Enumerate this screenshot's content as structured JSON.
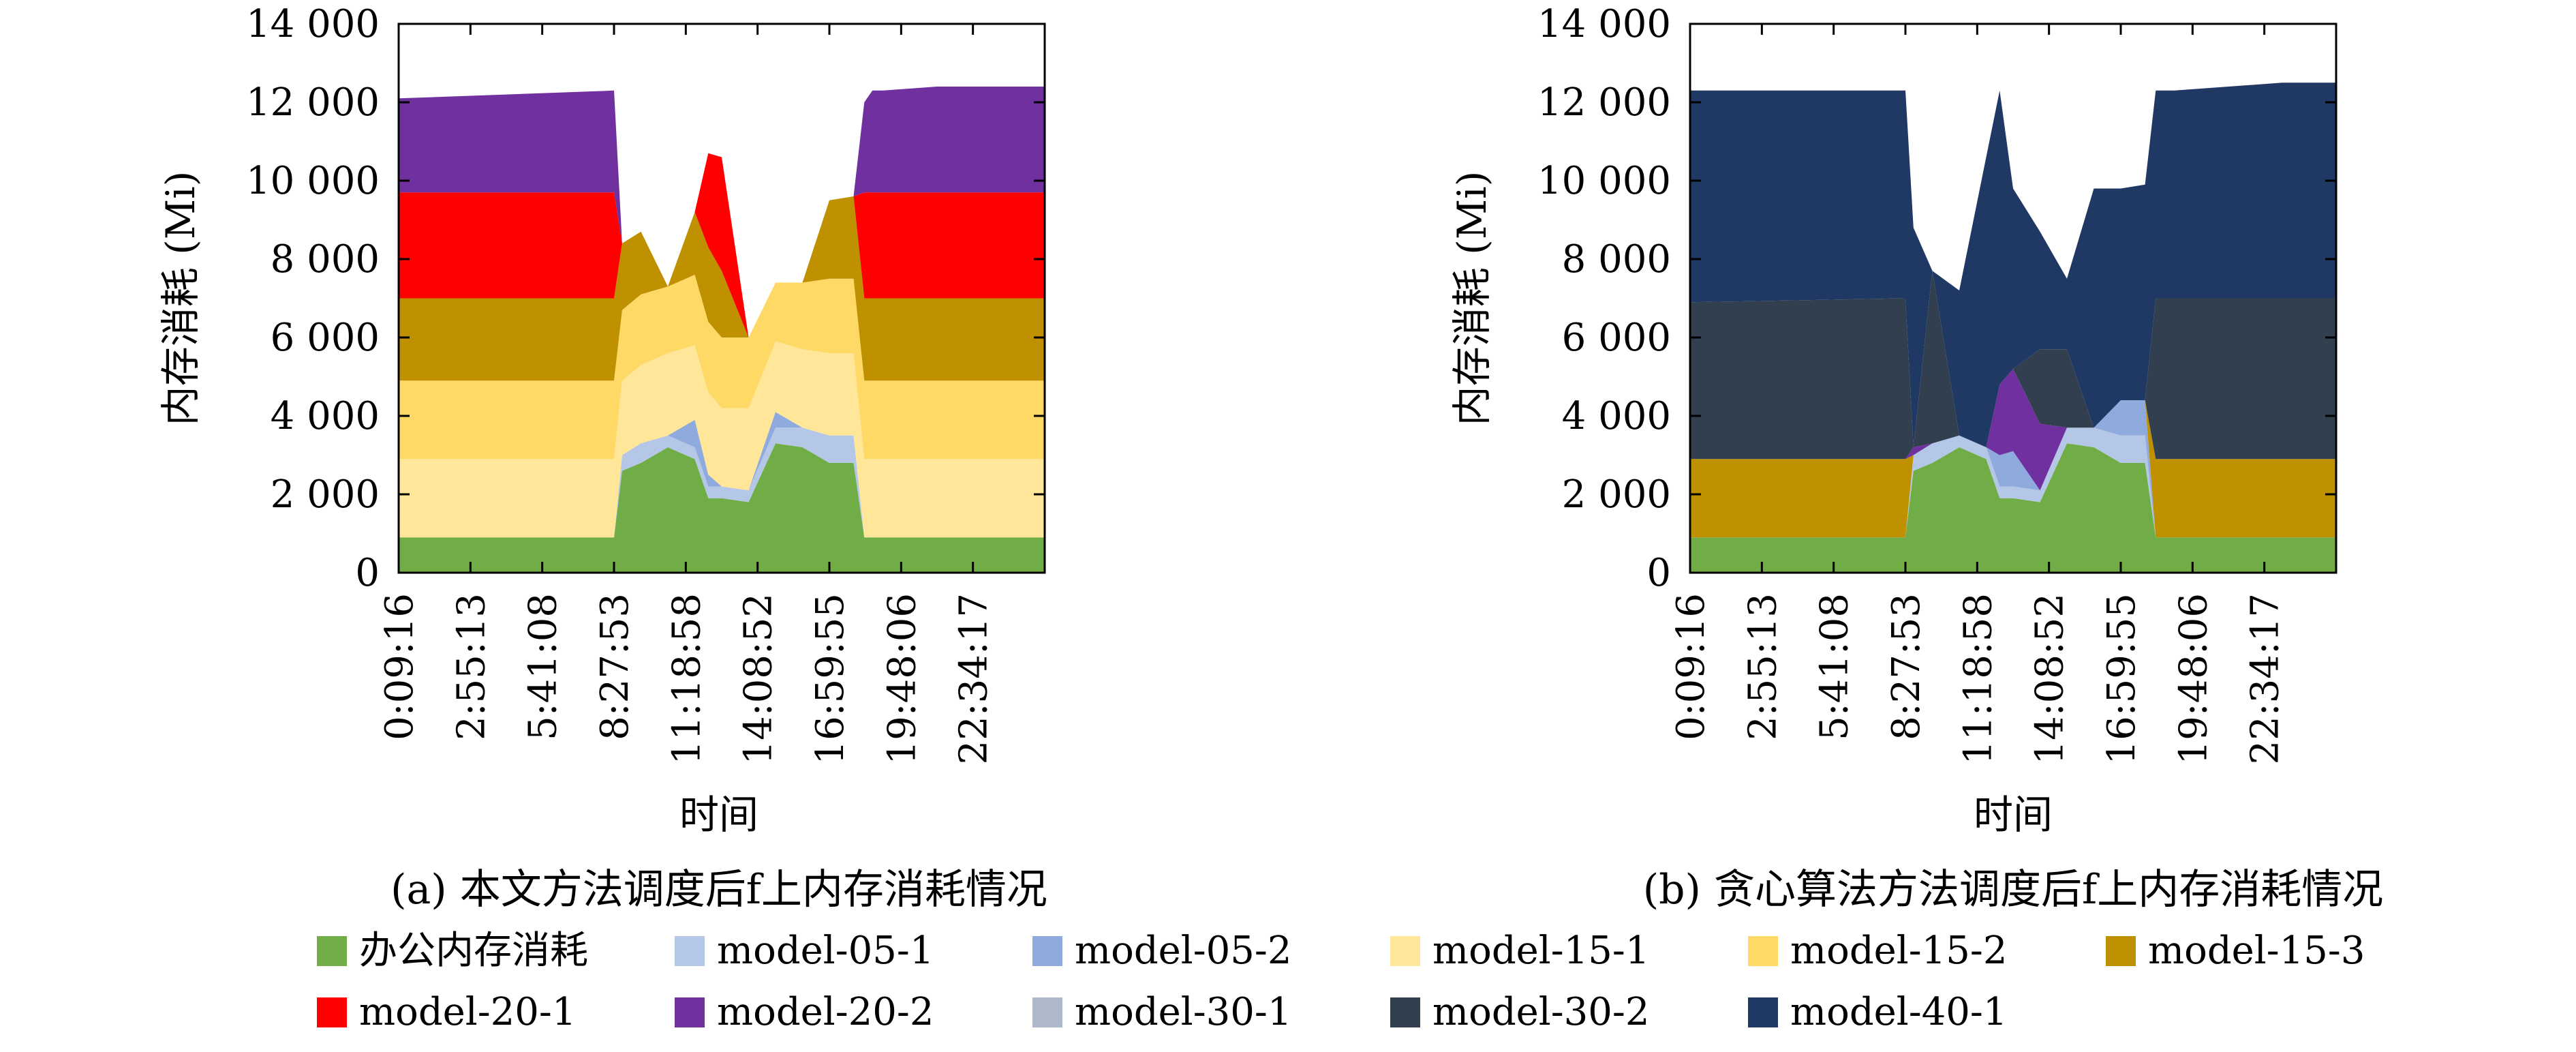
{
  "colors": {
    "office": "#70ad47",
    "model-05-1": "#b4c7e7",
    "model-05-2": "#8faadc",
    "model-15-1": "#ffe699",
    "model-15-2": "#ffd966",
    "model-15-3": "#bf9000",
    "model-20-1": "#ff0000",
    "model-20-2": "#7030a0",
    "model-30-1": "#adb9ca",
    "model-30-2": "#323f4f",
    "model-40-1": "#1f3864"
  },
  "legend": [
    {
      "key": "office",
      "label": "办公内存消耗"
    },
    {
      "key": "model-05-1",
      "label": "model-05-1"
    },
    {
      "key": "model-05-2",
      "label": "model-05-2"
    },
    {
      "key": "model-15-1",
      "label": "model-15-1"
    },
    {
      "key": "model-15-2",
      "label": "model-15-2"
    },
    {
      "key": "model-15-3",
      "label": "model-15-3"
    },
    {
      "key": "model-20-1",
      "label": "model-20-1"
    },
    {
      "key": "model-20-2",
      "label": "model-20-2"
    },
    {
      "key": "model-30-1",
      "label": "model-30-1"
    },
    {
      "key": "model-30-2",
      "label": "model-30-2"
    },
    {
      "key": "model-40-1",
      "label": "model-40-1"
    }
  ],
  "chart_data": [
    {
      "type": "area",
      "stacked": true,
      "caption": "(a) 本文方法调度后f上内存消耗情况",
      "xlabel": "时间",
      "ylabel": "内存消耗 (Mi)",
      "xlim": [
        0,
        24
      ],
      "ylim": [
        0,
        14000
      ],
      "yticks": [
        0,
        2000,
        4000,
        6000,
        8000,
        10000,
        12000,
        14000
      ],
      "ytick_labels": [
        "0",
        "2 000",
        "4 000",
        "6 000",
        "8 000",
        "10 000",
        "12 000",
        "14 000"
      ],
      "xtick_labels": [
        "0:09:16",
        "2:55:13",
        "5:41:08",
        "8:27:53",
        "11:18:58",
        "14:08:52",
        "16:59:55",
        "19:48:06",
        "22:34:17"
      ],
      "x": [
        0,
        8,
        8.3,
        9,
        10,
        11,
        11.5,
        12,
        13,
        14,
        15,
        16,
        16.9,
        17.3,
        17.6,
        18,
        20,
        22,
        24
      ],
      "series": [
        {
          "key": "office",
          "values": [
            900,
            900,
            2600,
            2800,
            3200,
            2900,
            1900,
            1900,
            1800,
            3300,
            3200,
            2800,
            2800,
            900,
            900,
            900,
            900,
            900,
            900
          ]
        },
        {
          "key": "model-05-1",
          "values": [
            0,
            0,
            400,
            500,
            300,
            300,
            300,
            300,
            300,
            400,
            500,
            700,
            700,
            0,
            0,
            0,
            0,
            0,
            0
          ]
        },
        {
          "key": "model-05-2",
          "values": [
            0,
            0,
            0,
            0,
            0,
            700,
            300,
            0,
            0,
            400,
            0,
            0,
            0,
            0,
            0,
            0,
            0,
            0,
            0
          ]
        },
        {
          "key": "model-15-1",
          "values": [
            2000,
            2000,
            1900,
            2000,
            2100,
            1900,
            2100,
            2000,
            2100,
            1800,
            2000,
            2100,
            2100,
            2000,
            2000,
            2000,
            2000,
            2000,
            2000
          ]
        },
        {
          "key": "model-15-2",
          "values": [
            2000,
            2000,
            1800,
            1800,
            1700,
            1800,
            1800,
            1800,
            1800,
            1500,
            1700,
            1900,
            1900,
            2000,
            2000,
            2000,
            2000,
            2000,
            2000
          ]
        },
        {
          "key": "model-15-3",
          "values": [
            2100,
            2100,
            1700,
            1600,
            0,
            1600,
            1900,
            1700,
            0,
            0,
            0,
            2000,
            2100,
            2100,
            2100,
            2100,
            2100,
            2100,
            2100
          ]
        },
        {
          "key": "model-20-1",
          "values": [
            2700,
            2700,
            0,
            0,
            0,
            0,
            2400,
            2900,
            0,
            0,
            0,
            0,
            0,
            2700,
            2700,
            2700,
            2700,
            2700,
            2700
          ]
        },
        {
          "key": "model-20-2",
          "values": [
            2400,
            2600,
            0,
            0,
            0,
            0,
            0,
            0,
            0,
            0,
            0,
            0,
            0,
            2300,
            2600,
            2600,
            2700,
            2700,
            2700
          ]
        }
      ]
    },
    {
      "type": "area",
      "stacked": true,
      "caption": "(b) 贪心算法方法调度后f上内存消耗情况",
      "xlabel": "时间",
      "ylabel": "内存消耗 (Mi)",
      "xlim": [
        0,
        24
      ],
      "ylim": [
        0,
        14000
      ],
      "yticks": [
        0,
        2000,
        4000,
        6000,
        8000,
        10000,
        12000,
        14000
      ],
      "ytick_labels": [
        "0",
        "2 000",
        "4 000",
        "6 000",
        "8 000",
        "10 000",
        "12 000",
        "14 000"
      ],
      "xtick_labels": [
        "0:09:16",
        "2:55:13",
        "5:41:08",
        "8:27:53",
        "11:18:58",
        "14:08:52",
        "16:59:55",
        "19:48:06",
        "22:34:17"
      ],
      "x": [
        0,
        8,
        8.3,
        9,
        10,
        11,
        11.5,
        12,
        13,
        14,
        15,
        16,
        16.9,
        17.3,
        17.6,
        18,
        20,
        22,
        24
      ],
      "series": [
        {
          "key": "office",
          "values": [
            900,
            900,
            2600,
            2800,
            3200,
            2900,
            1900,
            1900,
            1800,
            3300,
            3200,
            2800,
            2800,
            900,
            900,
            900,
            900,
            900,
            900
          ]
        },
        {
          "key": "model-05-1",
          "values": [
            0,
            0,
            400,
            500,
            300,
            300,
            300,
            300,
            300,
            400,
            500,
            700,
            700,
            0,
            0,
            0,
            0,
            0,
            0
          ]
        },
        {
          "key": "model-05-2",
          "values": [
            0,
            0,
            0,
            0,
            0,
            0,
            800,
            900,
            0,
            0,
            0,
            900,
            900,
            0,
            0,
            0,
            0,
            0,
            0
          ]
        },
        {
          "key": "model-15-3",
          "values": [
            2000,
            2000,
            0,
            0,
            0,
            0,
            0,
            0,
            0,
            0,
            0,
            0,
            0,
            2000,
            2000,
            2000,
            2000,
            2000,
            2000
          ]
        },
        {
          "key": "model-20-2",
          "values": [
            0,
            0,
            200,
            0,
            0,
            0,
            1800,
            2100,
            1700,
            0,
            0,
            0,
            0,
            0,
            0,
            0,
            0,
            0,
            0
          ]
        },
        {
          "key": "model-30-2",
          "values": [
            4000,
            4100,
            0,
            4400,
            0,
            0,
            0,
            0,
            1900,
            2000,
            0,
            0,
            0,
            4100,
            4100,
            4100,
            4100,
            4100,
            4100
          ]
        },
        {
          "key": "model-40-1",
          "values": [
            5400,
            5300,
            5600,
            0,
            3700,
            7400,
            7500,
            4600,
            3000,
            1800,
            6100,
            5400,
            5500,
            5300,
            5300,
            5300,
            5400,
            5500,
            5500
          ]
        }
      ]
    }
  ]
}
